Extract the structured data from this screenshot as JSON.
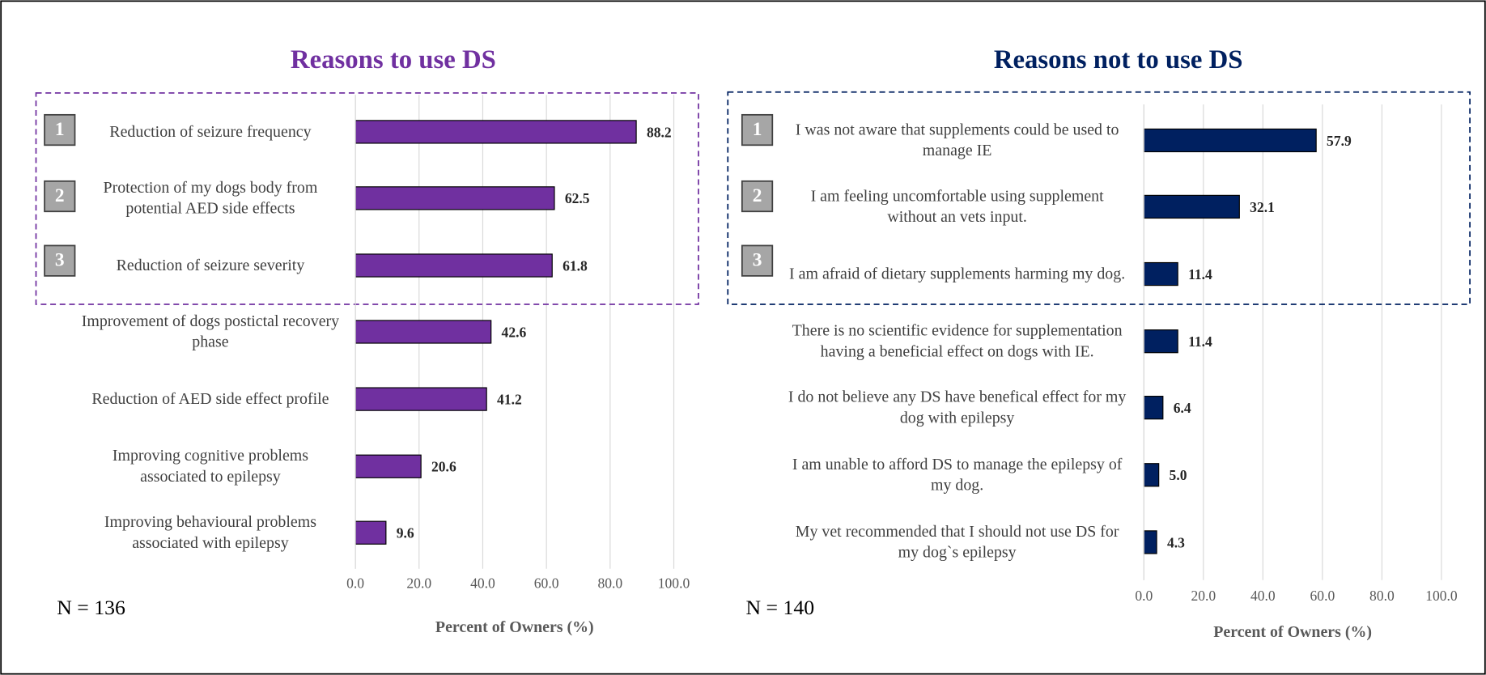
{
  "chart_data": [
    {
      "type": "bar",
      "orientation": "horizontal",
      "title": "Reasons to use DS",
      "title_color": "#7030a0",
      "categories": [
        "Reduction  of seizure frequency",
        "Protection of my dogs body from potential AED side effects",
        "Reduction  of seizure severity",
        "Improvement of dogs postictal recovery phase",
        "Reduction of AED side effect profile",
        "Improving cognitive problems associated to epilepsy",
        "Improving behavioural problems associated with epilepsy"
      ],
      "values": [
        88.2,
        62.5,
        61.8,
        42.6,
        41.2,
        20.6,
        9.6
      ],
      "color": "#7030a0",
      "xlim": [
        0,
        100
      ],
      "xticks": [
        {
          "value": 0,
          "label": "0.0"
        },
        {
          "value": 20,
          "label": "20.0"
        },
        {
          "value": 40,
          "label": "40.0"
        },
        {
          "value": 60,
          "label": "60.0"
        },
        {
          "value": 80,
          "label": "80.0"
        },
        {
          "value": 100,
          "label": "100.0"
        }
      ],
      "grid": true,
      "xlabel": "Percent of Owners (%)",
      "annotation": "N = 136",
      "rank_badges": [
        "1",
        "2",
        "3"
      ]
    },
    {
      "type": "bar",
      "orientation": "horizontal",
      "title": "Reasons not to use DS",
      "title_color": "#002060",
      "categories": [
        "I was not aware that supplements could be used to manage IE",
        "I am feeling uncomfortable using supplement without an vets input.",
        "I am afraid of dietary supplements harming my dog.",
        "There is no scientific evidence for supplementation having a beneficial effect on dogs with IE.",
        "I do not believe any DS have benefical effect for my dog with epilepsy",
        "I am unable to afford DS to manage the epilepsy of my dog.",
        "My vet recommended that I should not use DS for my dog`s epilepsy"
      ],
      "values": [
        57.9,
        32.1,
        11.4,
        11.4,
        6.4,
        5.0,
        4.3
      ],
      "value_labels": [
        "57.9",
        "32.1",
        "11.4",
        "11.4",
        "6.4",
        "5.0",
        "4.3"
      ],
      "color": "#002060",
      "xlim": [
        0,
        100
      ],
      "xticks": [
        {
          "value": 0,
          "label": "0.0"
        },
        {
          "value": 20,
          "label": "20.0"
        },
        {
          "value": 40,
          "label": "40.0"
        },
        {
          "value": 60,
          "label": "60.0"
        },
        {
          "value": 80,
          "label": "80.0"
        },
        {
          "value": 100,
          "label": "100.0"
        }
      ],
      "grid": true,
      "xlabel": "Percent of Owners (%)",
      "annotation": "N = 140",
      "rank_badges": [
        "1",
        "2",
        "3"
      ]
    }
  ]
}
